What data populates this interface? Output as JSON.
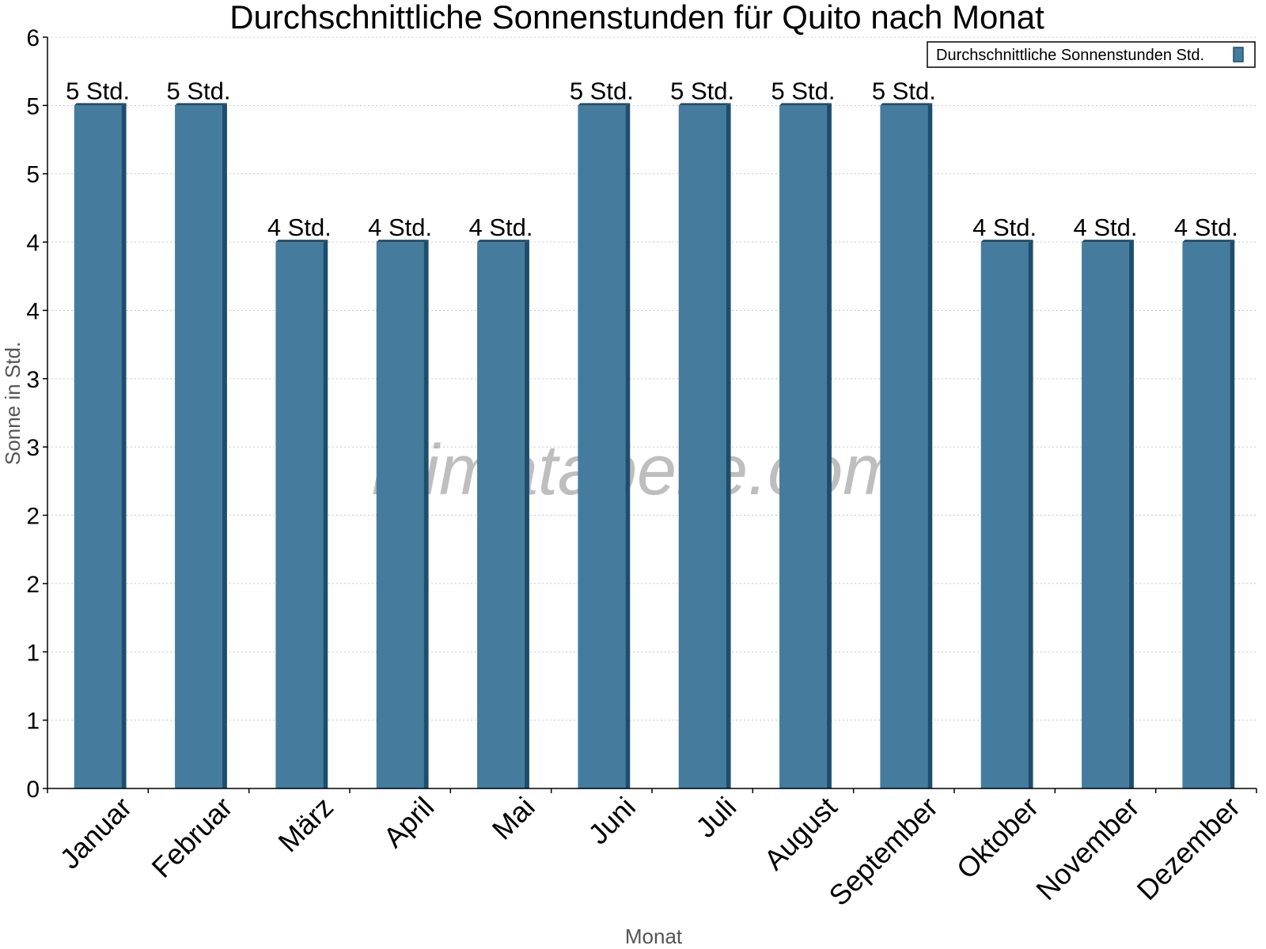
{
  "chart_data": {
    "type": "bar",
    "title": "Durchschnittliche Sonnenstunden für Quito nach Monat",
    "xlabel": "Monat",
    "ylabel": "Sonne in Std.",
    "ylim": [
      0,
      5.5
    ],
    "y_ticks": [
      {
        "value": 0,
        "label": "0"
      },
      {
        "value": 0.5,
        "label": "1"
      },
      {
        "value": 1,
        "label": "1"
      },
      {
        "value": 1.5,
        "label": "2"
      },
      {
        "value": 2,
        "label": "2"
      },
      {
        "value": 2.5,
        "label": "3"
      },
      {
        "value": 3,
        "label": "3"
      },
      {
        "value": 3.5,
        "label": "4"
      },
      {
        "value": 4,
        "label": "4"
      },
      {
        "value": 4.5,
        "label": "5"
      },
      {
        "value": 5,
        "label": "5"
      },
      {
        "value": 5.5,
        "label": "6"
      }
    ],
    "grid": true,
    "legend": {
      "position": "top-right"
    },
    "categories": [
      "Januar",
      "Februar",
      "März",
      "April",
      "Mai",
      "Juni",
      "Juli",
      "August",
      "September",
      "Oktober",
      "November",
      "Dezember"
    ],
    "series": [
      {
        "name": "Durchschnittliche Sonnenstunden Std.",
        "color": "#457b9d",
        "values": [
          5,
          5,
          4,
          4,
          4,
          5,
          5,
          5,
          5,
          4,
          4,
          4
        ],
        "labels": [
          "5 Std.",
          "5 Std.",
          "4 Std.",
          "4 Std.",
          "4 Std.",
          "5 Std.",
          "5 Std.",
          "5 Std.",
          "5 Std.",
          "4 Std.",
          "4 Std.",
          "4 Std."
        ]
      }
    ]
  },
  "watermark": "klimatabelle.com",
  "colors": {
    "bar_front": "#457b9d",
    "bar_side": "#1d4e6e",
    "grid": "#c8c8c8"
  }
}
